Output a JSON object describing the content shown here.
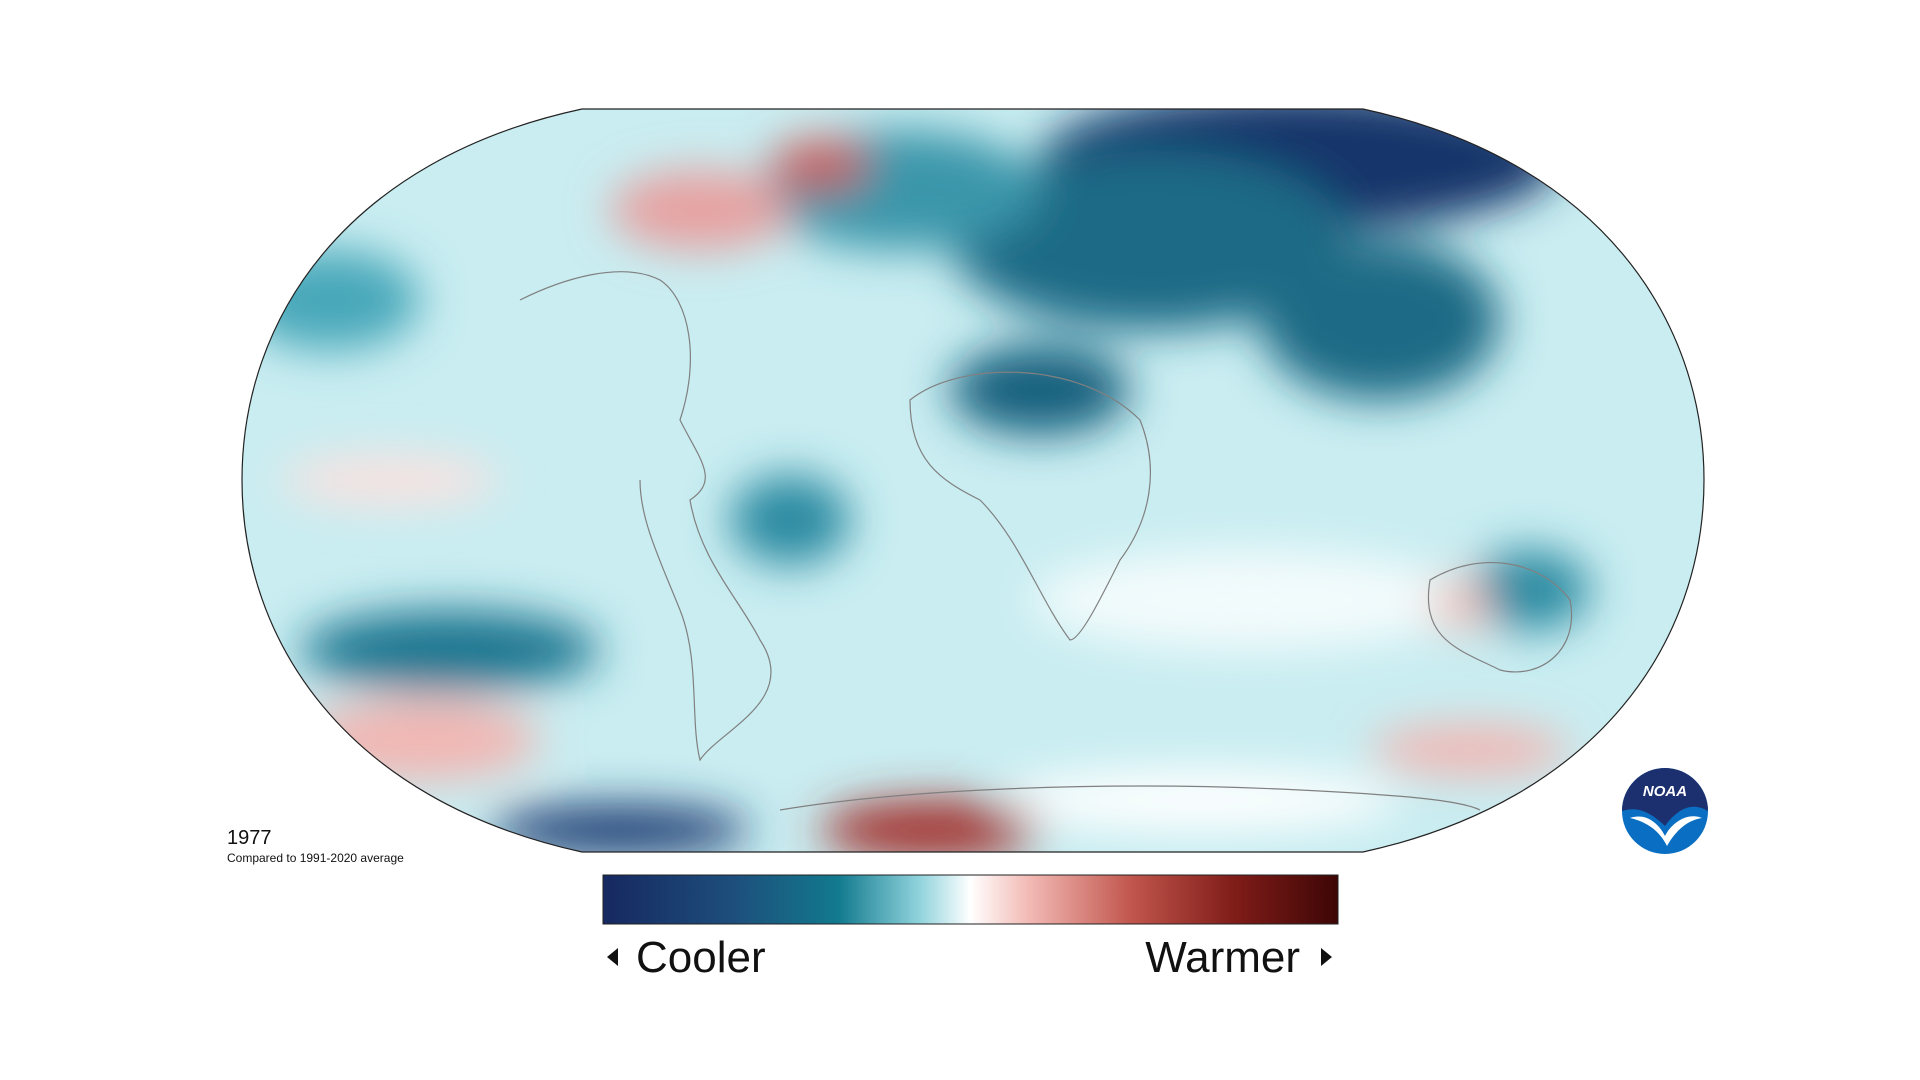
{
  "map": {
    "year": "1977",
    "subtitle": "Compared to 1991-2020 average",
    "legend": {
      "low": "Cooler",
      "high": "Warmer"
    },
    "logo": "NOAA"
  }
}
